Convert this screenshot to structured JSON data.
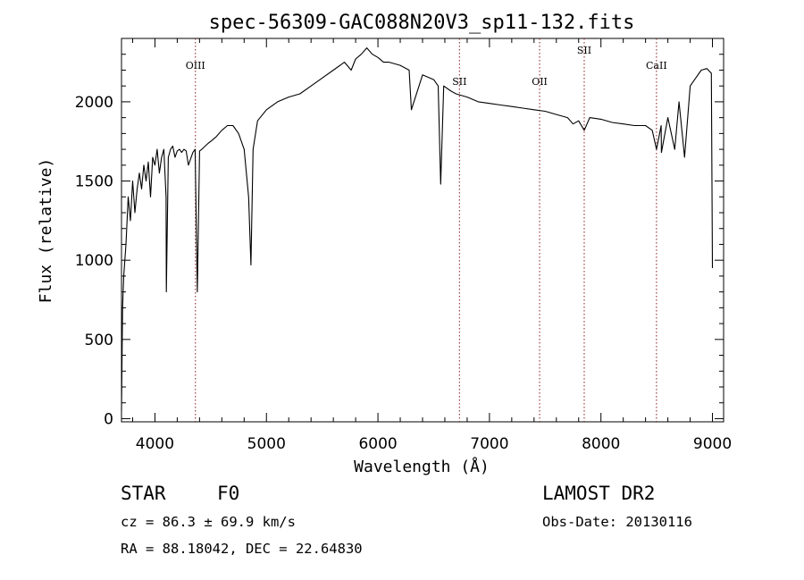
{
  "chart_data": {
    "type": "line",
    "title": "spec-56309-GAC088N20V3_sp11-132.fits",
    "xlabel": "Wavelength (Å)",
    "ylabel": "Flux (relative)",
    "xlim": [
      3700,
      9100
    ],
    "ylim": [
      -20,
      2400
    ],
    "x_ticks": [
      4000,
      5000,
      6000,
      7000,
      8000,
      9000
    ],
    "y_ticks": [
      0,
      500,
      1000,
      1500,
      2000
    ],
    "grid": false,
    "line_color": "#000000",
    "marker_color": "#8b1a1a",
    "reference_lines": [
      {
        "label": "OIII",
        "wavelength": 4363
      },
      {
        "label": "SII",
        "wavelength": 6731
      },
      {
        "label": "OII",
        "wavelength": 7450
      },
      {
        "label": "SII",
        "wavelength": 7850
      },
      {
        "label": "CaII",
        "wavelength": 8498
      }
    ],
    "x": [
      3700,
      3710,
      3720,
      3740,
      3760,
      3780,
      3800,
      3820,
      3840,
      3860,
      3880,
      3900,
      3920,
      3940,
      3960,
      3980,
      4000,
      4020,
      4040,
      4060,
      4080,
      4100,
      4102,
      4120,
      4140,
      4160,
      4180,
      4200,
      4220,
      4240,
      4260,
      4280,
      4300,
      4320,
      4340,
      4360,
      4380,
      4400,
      4420,
      4450,
      4480,
      4500,
      4550,
      4600,
      4650,
      4700,
      4750,
      4800,
      4840,
      4861,
      4880,
      4920,
      5000,
      5100,
      5200,
      5300,
      5400,
      5500,
      5600,
      5700,
      5760,
      5800,
      5850,
      5900,
      5950,
      6000,
      6050,
      6100,
      6200,
      6280,
      6300,
      6400,
      6500,
      6540,
      6563,
      6590,
      6650,
      6700,
      6800,
      6900,
      7000,
      7100,
      7200,
      7300,
      7400,
      7500,
      7600,
      7700,
      7750,
      7800,
      7850,
      7900,
      8000,
      8100,
      8200,
      8300,
      8400,
      8460,
      8498,
      8540,
      8542,
      8600,
      8662,
      8700,
      8750,
      8800,
      8850,
      8900,
      8950,
      8990,
      9000
    ],
    "values": [
      50,
      700,
      900,
      1100,
      1400,
      1250,
      1500,
      1300,
      1450,
      1550,
      1450,
      1600,
      1500,
      1620,
      1400,
      1650,
      1600,
      1700,
      1550,
      1650,
      1700,
      1400,
      800,
      1650,
      1700,
      1720,
      1650,
      1690,
      1700,
      1680,
      1700,
      1690,
      1600,
      1640,
      1680,
      1700,
      800,
      1690,
      1700,
      1720,
      1740,
      1750,
      1780,
      1820,
      1850,
      1850,
      1800,
      1700,
      1400,
      970,
      1700,
      1880,
      1950,
      2000,
      2030,
      2050,
      2100,
      2150,
      2200,
      2250,
      2200,
      2270,
      2300,
      2340,
      2300,
      2280,
      2250,
      2250,
      2230,
      2200,
      1950,
      2170,
      2140,
      2100,
      1480,
      2100,
      2070,
      2050,
      2030,
      2000,
      1990,
      1980,
      1970,
      1960,
      1950,
      1940,
      1920,
      1900,
      1860,
      1880,
      1820,
      1900,
      1890,
      1870,
      1860,
      1850,
      1850,
      1820,
      1700,
      1850,
      1680,
      1900,
      1700,
      2000,
      1650,
      2100,
      2150,
      2200,
      2210,
      2180,
      950
    ]
  },
  "info": {
    "class_label": "STAR",
    "subclass": "F0",
    "cz_text": "cz = 86.3 ± 69.9 km/s",
    "coords_text": "RA =  88.18042, DEC =  22.64830",
    "survey": "LAMOST DR2",
    "obs_date": "Obs-Date: 20130116"
  }
}
